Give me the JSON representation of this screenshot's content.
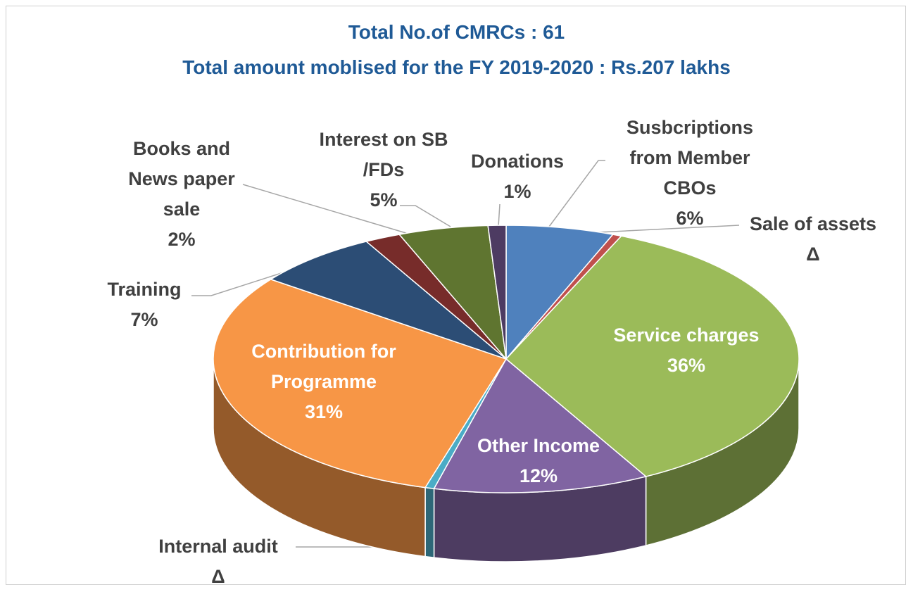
{
  "chart_data": {
    "type": "pie3d",
    "title": "Total No.of CMRCs : 61",
    "subtitle": "Total amount moblised for the FY 2019-2020 : Rs.207 lakhs",
    "categories": [
      "Susbcriptions from Member CBOs",
      "Sale of assets",
      "Service charges",
      "Other Income",
      "Internal audit",
      "Contribution for Programme",
      "Training",
      "Books and News paper sale",
      "Interest on SB /FDs",
      "Donations"
    ],
    "values": [
      6,
      0.5,
      36,
      12,
      0.5,
      31,
      7,
      2,
      5,
      1
    ],
    "value_labels": [
      "6%",
      "Δ",
      "36%",
      "12%",
      "Δ",
      "31%",
      "7%",
      "2%",
      "5%",
      "1%"
    ],
    "colors": [
      "#4f81bd",
      "#c0504d",
      "#9bbb59",
      "#8064a2",
      "#4bacc6",
      "#f79646",
      "#2c4d75",
      "#772c2a",
      "#5f7530",
      "#4d3b62"
    ]
  }
}
